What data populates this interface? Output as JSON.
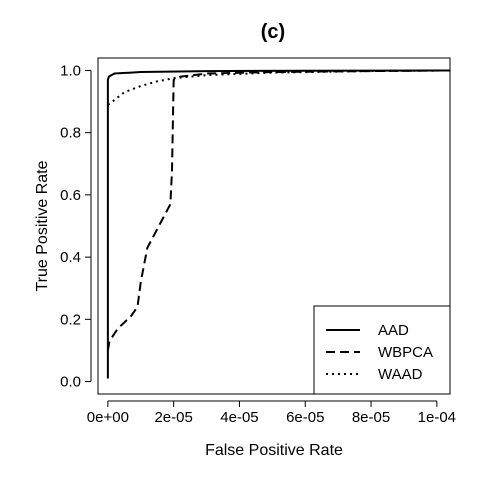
{
  "chart_data": {
    "type": "line",
    "title": "(c)",
    "xlabel": "False Positive Rate",
    "ylabel": "True Positive Rate",
    "xlim": [
      -3e-06,
      0.000104
    ],
    "ylim": [
      -0.04,
      1.04
    ],
    "x_ticks": [
      {
        "value": 0,
        "label": "0e+00"
      },
      {
        "value": 2e-05,
        "label": "2e-05"
      },
      {
        "value": 4e-05,
        "label": "4e-05"
      },
      {
        "value": 6e-05,
        "label": "6e-05"
      },
      {
        "value": 8e-05,
        "label": "8e-05"
      },
      {
        "value": 0.0001,
        "label": "1e-04"
      }
    ],
    "y_ticks": [
      {
        "value": 0.0,
        "label": "0.0"
      },
      {
        "value": 0.2,
        "label": "0.2"
      },
      {
        "value": 0.4,
        "label": "0.4"
      },
      {
        "value": 0.6,
        "label": "0.6"
      },
      {
        "value": 0.8,
        "label": "0.8"
      },
      {
        "value": 1.0,
        "label": "1.0"
      }
    ],
    "grid": false,
    "legend_position": "bottom-right",
    "series": [
      {
        "name": "AAD",
        "dash": "solid",
        "x": [
          0,
          0,
          3e-07,
          2e-06,
          1e-05,
          3e-05,
          6e-05,
          0.0001,
          0.000104
        ],
        "y": [
          0.01,
          0.97,
          0.98,
          0.99,
          0.995,
          0.998,
          0.999,
          1.0,
          1.0
        ]
      },
      {
        "name": "WBPCA",
        "dash": "dashed",
        "x": [
          0,
          5e-07,
          3e-06,
          7e-06,
          9e-06,
          1e-05,
          1.2e-05,
          1.6e-05,
          1.9e-05,
          1.95e-05,
          2e-05,
          2.2e-05,
          3e-05,
          5e-05,
          8e-05,
          0.000104
        ],
        "y": [
          0.1,
          0.13,
          0.17,
          0.21,
          0.24,
          0.32,
          0.43,
          0.51,
          0.57,
          0.68,
          0.97,
          0.98,
          0.99,
          0.995,
          0.998,
          1.0
        ]
      },
      {
        "name": "WAAD",
        "dash": "dotted",
        "x": [
          0,
          2e-06,
          5e-06,
          1e-05,
          1.5e-05,
          2e-05,
          3e-05,
          5e-05,
          8e-05,
          0.000104
        ],
        "y": [
          0.89,
          0.905,
          0.93,
          0.95,
          0.965,
          0.975,
          0.985,
          0.993,
          0.998,
          1.0
        ]
      }
    ]
  }
}
